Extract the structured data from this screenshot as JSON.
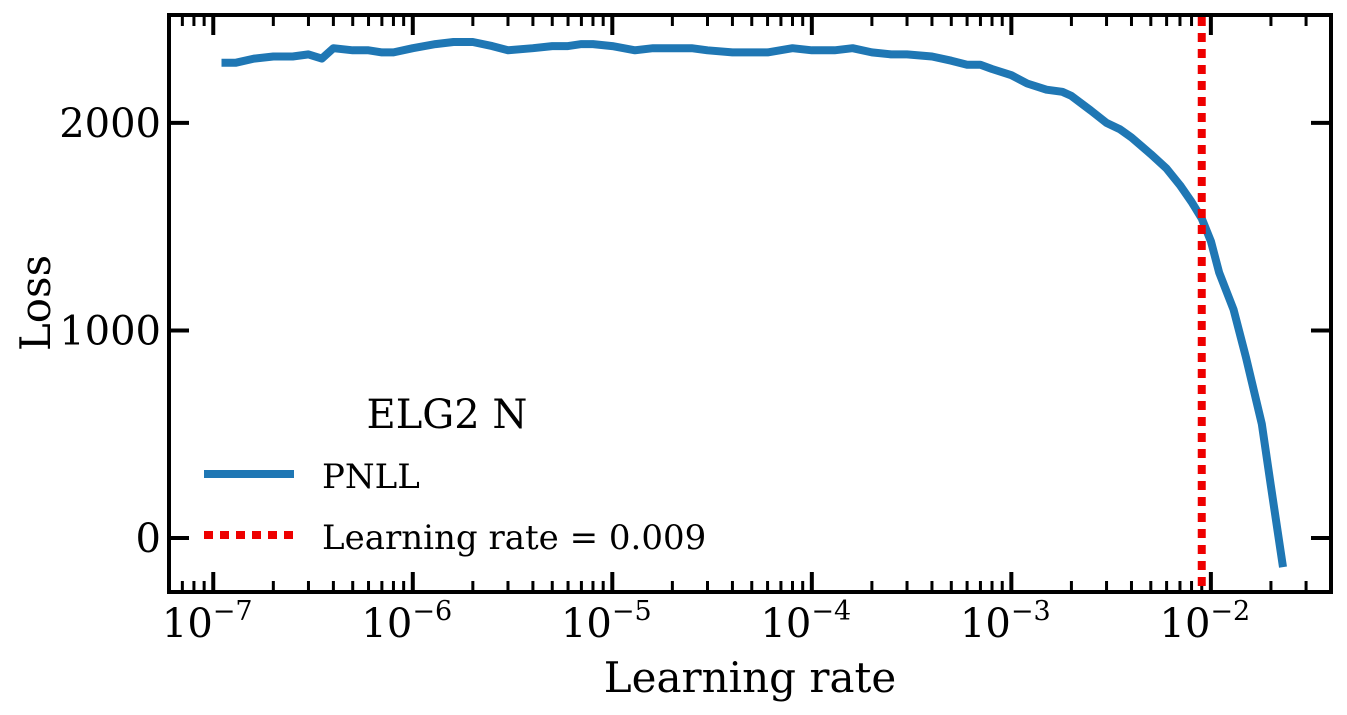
{
  "chart_data": {
    "type": "line",
    "xlabel": "Learning rate",
    "ylabel": "Loss",
    "xscale": "log",
    "xlim": [
      6e-08,
      0.04
    ],
    "ylim": [
      -260,
      2520
    ],
    "x_ticks": [
      {
        "base": "10",
        "exp": "−7",
        "value": 1e-07
      },
      {
        "base": "10",
        "exp": "−6",
        "value": 1e-06
      },
      {
        "base": "10",
        "exp": "−5",
        "value": 1e-05
      },
      {
        "base": "10",
        "exp": "−4",
        "value": 0.0001
      },
      {
        "base": "10",
        "exp": "−3",
        "value": 0.001
      },
      {
        "base": "10",
        "exp": "−2",
        "value": 0.01
      }
    ],
    "y_ticks": [
      {
        "label": "0",
        "value": 0
      },
      {
        "label": "1000",
        "value": 1000
      },
      {
        "label": "2000",
        "value": 2000
      }
    ],
    "legend": {
      "title": "ELG2 N",
      "position": "lower-left"
    },
    "series": [
      {
        "name": "PNLL",
        "color": "#1f77b4",
        "style": "solid",
        "x": [
          1.1e-07,
          1.3e-07,
          1.6e-07,
          2e-07,
          2.5e-07,
          3e-07,
          3.5e-07,
          4e-07,
          5e-07,
          6e-07,
          7e-07,
          8e-07,
          1e-06,
          1.3e-06,
          1.6e-06,
          2e-06,
          2.5e-06,
          3e-06,
          4e-06,
          5e-06,
          6e-06,
          7e-06,
          8e-06,
          1e-05,
          1.3e-05,
          1.6e-05,
          2e-05,
          2.5e-05,
          3e-05,
          4e-05,
          5e-05,
          6e-05,
          8e-05,
          0.0001,
          0.00013,
          0.00016,
          0.0002,
          0.00025,
          0.0003,
          0.0004,
          0.0005,
          0.0006,
          0.0007,
          0.0008,
          0.001,
          0.0012,
          0.0015,
          0.0018,
          0.002,
          0.0025,
          0.003,
          0.0035,
          0.004,
          0.005,
          0.006,
          0.007,
          0.008,
          0.009,
          0.01,
          0.011,
          0.013,
          0.015,
          0.018,
          0.02,
          0.023
        ],
        "y": [
          2290,
          2290,
          2310,
          2320,
          2320,
          2330,
          2310,
          2360,
          2350,
          2350,
          2340,
          2340,
          2360,
          2380,
          2390,
          2390,
          2370,
          2350,
          2360,
          2370,
          2370,
          2380,
          2380,
          2370,
          2350,
          2360,
          2360,
          2360,
          2350,
          2340,
          2340,
          2340,
          2360,
          2350,
          2350,
          2360,
          2340,
          2330,
          2330,
          2320,
          2300,
          2280,
          2280,
          2260,
          2230,
          2190,
          2160,
          2150,
          2130,
          2060,
          2000,
          1970,
          1930,
          1850,
          1780,
          1700,
          1620,
          1540,
          1430,
          1280,
          1100,
          870,
          550,
          250,
          -140
        ]
      },
      {
        "name": "Learning rate = 0.009",
        "color": "#ee0000",
        "style": "dotted",
        "vline": 0.009
      }
    ]
  }
}
